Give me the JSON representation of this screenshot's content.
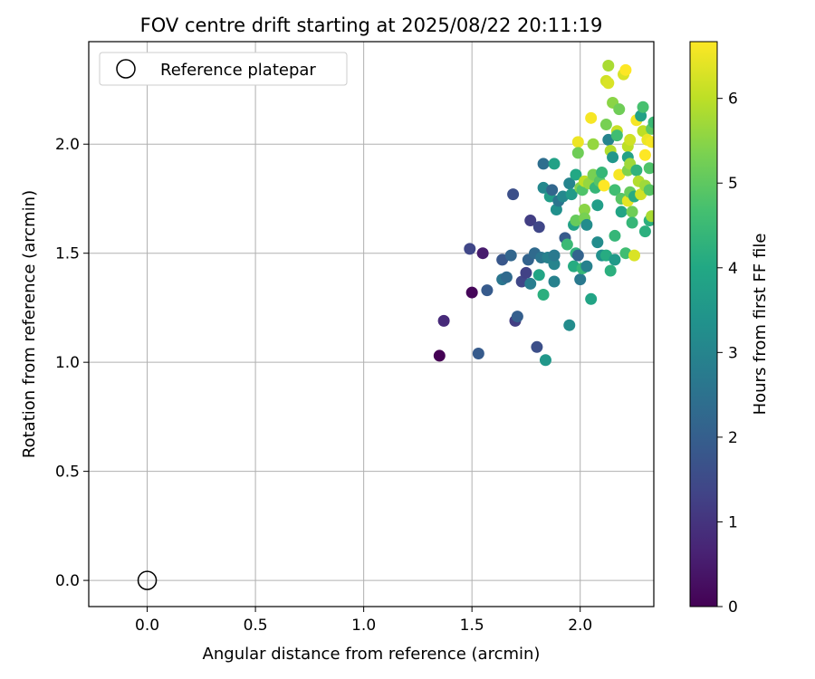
{
  "chart_data": {
    "type": "scatter",
    "title": "FOV centre drift starting at 2025/08/22 20:11:19",
    "xlabel": "Angular distance from reference (arcmin)",
    "ylabel": "Rotation from reference (arcmin)",
    "xlim": [
      -0.27,
      2.34
    ],
    "ylim": [
      -0.12,
      2.47
    ],
    "xticks": [
      0.0,
      0.5,
      1.0,
      1.5,
      2.0
    ],
    "yticks": [
      0.0,
      0.5,
      1.0,
      1.5,
      2.0
    ],
    "xtick_labels": [
      "0.0",
      "0.5",
      "1.0",
      "1.5",
      "2.0"
    ],
    "ytick_labels": [
      "0.0",
      "0.5",
      "1.0",
      "1.5",
      "2.0"
    ],
    "grid": true,
    "legend": {
      "placement": "top-left",
      "entries": [
        "Reference platepar"
      ]
    },
    "reference": {
      "x": 0.0,
      "y": 0.0,
      "label": "Reference platepar"
    },
    "colorbar": {
      "label": "Hours from first FF file",
      "min": 0,
      "max": 6.67,
      "ticks": [
        0,
        1,
        2,
        3,
        4,
        5,
        6
      ],
      "tick_labels": [
        "0",
        "1",
        "2",
        "3",
        "4",
        "5",
        "6"
      ],
      "colormap": "viridis"
    },
    "series": [
      {
        "points": [
          [
            1.35,
            1.03,
            0.0
          ],
          [
            1.5,
            1.32,
            0.1
          ],
          [
            1.37,
            1.19,
            0.8
          ],
          [
            1.49,
            1.52,
            1.4
          ],
          [
            1.55,
            1.5,
            0.5
          ],
          [
            1.53,
            1.04,
            1.9
          ],
          [
            1.57,
            1.33,
            1.9
          ],
          [
            1.64,
            1.47,
            1.8
          ],
          [
            1.64,
            1.38,
            2.6
          ],
          [
            1.66,
            1.39,
            2.3
          ],
          [
            1.68,
            1.49,
            2.2
          ],
          [
            1.69,
            1.77,
            1.6
          ],
          [
            1.7,
            1.19,
            1.2
          ],
          [
            1.71,
            1.21,
            2.0
          ],
          [
            1.73,
            1.37,
            1.4
          ],
          [
            1.75,
            1.41,
            1.3
          ],
          [
            1.76,
            1.47,
            2.1
          ],
          [
            1.77,
            1.65,
            1.2
          ],
          [
            1.77,
            1.36,
            2.8
          ],
          [
            1.79,
            1.5,
            2.3
          ],
          [
            1.8,
            1.07,
            1.6
          ],
          [
            1.81,
            1.4,
            3.9
          ],
          [
            1.81,
            1.62,
            1.4
          ],
          [
            1.82,
            1.48,
            2.6
          ],
          [
            1.83,
            1.91,
            2.4
          ],
          [
            1.83,
            1.8,
            3.1
          ],
          [
            1.83,
            1.31,
            4.2
          ],
          [
            1.84,
            1.01,
            3.5
          ],
          [
            1.85,
            1.48,
            2.9
          ],
          [
            1.86,
            1.76,
            3.7
          ],
          [
            1.87,
            1.79,
            2.2
          ],
          [
            1.88,
            1.91,
            3.8
          ],
          [
            1.88,
            1.45,
            3.0
          ],
          [
            1.88,
            1.37,
            2.9
          ],
          [
            1.88,
            1.49,
            2.7
          ],
          [
            1.89,
            1.7,
            3.3
          ],
          [
            1.9,
            1.74,
            2.6
          ],
          [
            1.92,
            1.76,
            3.1
          ],
          [
            1.93,
            1.57,
            1.9
          ],
          [
            1.94,
            1.54,
            4.5
          ],
          [
            1.95,
            1.17,
            3.2
          ],
          [
            1.95,
            1.82,
            3.0
          ],
          [
            1.96,
            1.77,
            3.6
          ],
          [
            1.97,
            1.63,
            3.8
          ],
          [
            1.97,
            1.44,
            4.1
          ],
          [
            1.98,
            1.5,
            4.3
          ],
          [
            1.99,
            1.49,
            2.1
          ],
          [
            1.98,
            1.65,
            5.1
          ],
          [
            1.98,
            1.86,
            4.0
          ],
          [
            1.99,
            2.01,
            6.5
          ],
          [
            1.99,
            1.96,
            5.2
          ],
          [
            2.0,
            1.38,
            2.7
          ],
          [
            2.0,
            1.8,
            5.4
          ],
          [
            2.01,
            1.79,
            4.8
          ],
          [
            2.01,
            1.43,
            4.4
          ],
          [
            2.02,
            1.83,
            6.0
          ],
          [
            2.02,
            1.7,
            5.5
          ],
          [
            2.02,
            1.66,
            5.3
          ],
          [
            2.03,
            1.44,
            2.9
          ],
          [
            2.03,
            1.63,
            3.2
          ],
          [
            2.04,
            1.82,
            5.6
          ],
          [
            2.05,
            2.12,
            6.6
          ],
          [
            2.05,
            1.29,
            3.9
          ],
          [
            2.06,
            1.86,
            5.3
          ],
          [
            2.06,
            2.0,
            5.6
          ],
          [
            2.07,
            1.8,
            4.4
          ],
          [
            2.08,
            1.72,
            3.7
          ],
          [
            2.08,
            1.55,
            3.2
          ],
          [
            2.09,
            1.83,
            4.9
          ],
          [
            2.1,
            1.87,
            4.4
          ],
          [
            2.1,
            1.49,
            3.3
          ],
          [
            2.11,
            1.81,
            6.7
          ],
          [
            2.12,
            1.49,
            4.1
          ],
          [
            2.12,
            2.29,
            6.2
          ],
          [
            2.12,
            2.09,
            5.3
          ],
          [
            2.13,
            2.36,
            5.8
          ],
          [
            2.13,
            2.28,
            6.3
          ],
          [
            2.13,
            2.02,
            3.0
          ],
          [
            2.14,
            1.42,
            4.2
          ],
          [
            2.14,
            1.97,
            5.9
          ],
          [
            2.15,
            2.19,
            5.5
          ],
          [
            2.15,
            1.94,
            3.5
          ],
          [
            2.16,
            1.79,
            4.6
          ],
          [
            2.16,
            1.58,
            4.4
          ],
          [
            2.16,
            1.47,
            3.6
          ],
          [
            2.17,
            2.06,
            6.1
          ],
          [
            2.17,
            2.04,
            4.6
          ],
          [
            2.18,
            2.16,
            5.2
          ],
          [
            2.18,
            1.86,
            6.6
          ],
          [
            2.19,
            1.69,
            3.9
          ],
          [
            2.19,
            1.75,
            4.9
          ],
          [
            2.2,
            2.32,
            6.3
          ],
          [
            2.21,
            2.34,
            6.7
          ],
          [
            2.21,
            1.5,
            4.6
          ],
          [
            2.22,
            1.74,
            6.4
          ],
          [
            2.22,
            1.99,
            6.0
          ],
          [
            2.22,
            1.88,
            5.4
          ],
          [
            2.22,
            1.94,
            3.8
          ],
          [
            2.23,
            2.02,
            6.2
          ],
          [
            2.23,
            1.91,
            5.7
          ],
          [
            2.23,
            1.78,
            5.1
          ],
          [
            2.24,
            1.69,
            5.2
          ],
          [
            2.24,
            1.64,
            4.4
          ],
          [
            2.25,
            1.49,
            6.3
          ],
          [
            2.25,
            1.76,
            4.1
          ],
          [
            2.26,
            2.11,
            6.6
          ],
          [
            2.26,
            1.88,
            4.3
          ],
          [
            2.27,
            1.83,
            5.9
          ],
          [
            2.28,
            1.77,
            6.2
          ],
          [
            2.28,
            2.13,
            3.8
          ],
          [
            2.29,
            2.17,
            4.7
          ],
          [
            2.29,
            2.06,
            6.0
          ],
          [
            2.3,
            1.95,
            6.7
          ],
          [
            2.3,
            1.6,
            4.2
          ],
          [
            2.3,
            1.81,
            5.7
          ],
          [
            2.31,
            2.02,
            6.5
          ],
          [
            2.32,
            1.89,
            4.8
          ],
          [
            2.32,
            1.79,
            4.9
          ],
          [
            2.32,
            1.65,
            4.2
          ],
          [
            2.33,
            2.01,
            6.6
          ],
          [
            2.33,
            2.07,
            5.0
          ],
          [
            2.33,
            1.67,
            5.8
          ],
          [
            2.34,
            2.1,
            4.5
          ]
        ]
      }
    ]
  }
}
